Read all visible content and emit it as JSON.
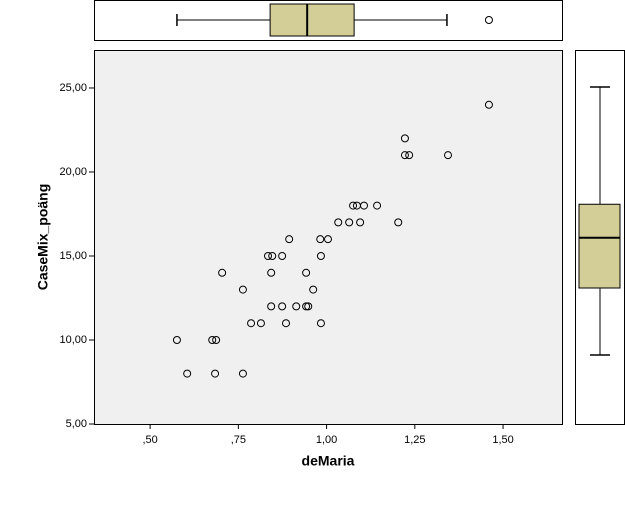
{
  "chart_data": {
    "type": "scatter",
    "x_label": "deMaria",
    "y_label": "CaseMix_poäng",
    "x": [
      0.576,
      0.605,
      0.676,
      0.687,
      0.684,
      0.704,
      0.763,
      0.763,
      0.786,
      0.814,
      0.834,
      0.846,
      0.843,
      0.843,
      0.874,
      0.874,
      0.885,
      0.894,
      0.914,
      0.942,
      0.942,
      0.948,
      0.962,
      0.982,
      0.984,
      0.984,
      1.004,
      1.033,
      1.064,
      1.075,
      1.086,
      1.095,
      1.106,
      1.143,
      1.203,
      1.222,
      1.234,
      1.222,
      1.344,
      1.46
    ],
    "y": [
      10,
      8,
      10,
      10,
      8,
      14,
      13,
      8,
      11,
      11,
      15,
      15,
      14,
      12,
      15,
      12,
      11,
      16,
      12,
      14,
      12,
      12,
      13,
      16,
      15,
      11,
      16,
      17,
      17,
      18,
      18,
      17,
      18,
      18,
      17,
      21,
      21,
      22,
      21,
      24
    ],
    "marker_color": "#000000",
    "plot_background": "#f0f0f0",
    "xlim": [
      0.341,
      1.667
    ],
    "ylim": [
      5,
      27.26
    ],
    "xticks": [
      {
        "value": 0.5,
        "label": ",50"
      },
      {
        "value": 0.75,
        "label": ",75"
      },
      {
        "value": 1.0,
        "label": "1,00"
      },
      {
        "value": 1.25,
        "label": "1,25"
      },
      {
        "value": 1.5,
        "label": "1,50"
      }
    ],
    "yticks": [
      {
        "value": 5,
        "label": "5,00"
      },
      {
        "value": 10,
        "label": "10,00"
      },
      {
        "value": 15,
        "label": "15,00"
      },
      {
        "value": 20,
        "label": "20,00"
      },
      {
        "value": 25,
        "label": "25,00"
      }
    ],
    "box_color": "#d3ce97",
    "top_boxplot": {
      "whisker_low": 0.576,
      "q1": 0.84,
      "median": 0.945,
      "q3": 1.078,
      "whisker_high": 1.341,
      "outliers": [
        1.46
      ]
    },
    "right_boxplot": {
      "ylim": [
        3.88,
        26.21
      ],
      "whisker_low": 8,
      "q1": 12,
      "median": 15,
      "q3": 17,
      "whisker_high": 24,
      "outliers": []
    }
  }
}
